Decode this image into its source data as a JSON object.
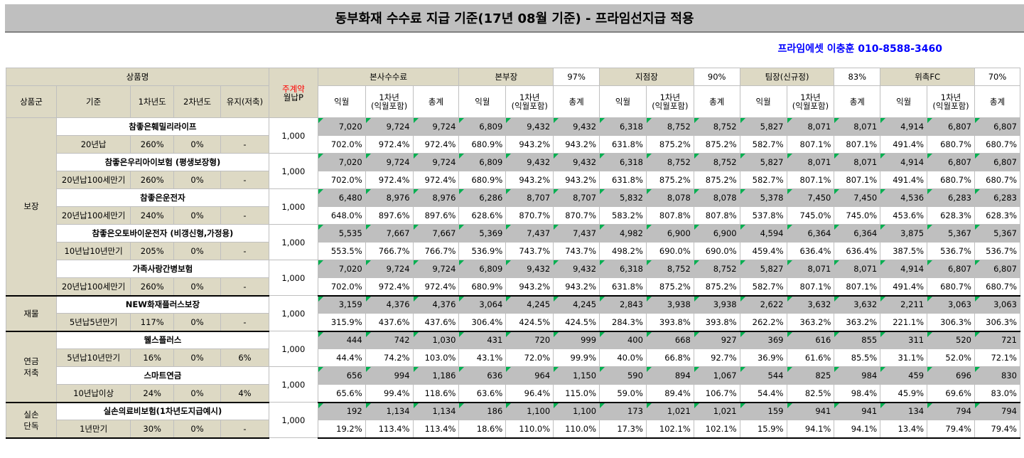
{
  "title": "동부화재 수수료 지급 기준(17년 08월 기준) - 프라임선지급 적용",
  "contact": "프라임에셋 이충훈 010-8588-3460",
  "header": {
    "product_name": "상품명",
    "main_contract_top": "주계약",
    "main_contract_bottom": "월납P",
    "hq_fee": "본사수수료",
    "hq_manager": "본부장",
    "hq_manager_rate": "97%",
    "branch_manager": "지점장",
    "branch_manager_rate": "90%",
    "team_leader": "팀장(신규정)",
    "team_leader_rate": "83%",
    "consignment": "위촉FC",
    "consignment_rate": "70%",
    "col_group": "상품군",
    "col_basis": "기준",
    "col_year1": "1차년도",
    "col_year2": "2차년도",
    "col_maintain": "유지(저축)",
    "col_next_month": "익월",
    "col_first_year_a": "1차년",
    "col_first_year_b": "(익월포함)",
    "col_total": "총계"
  },
  "groups": [
    {
      "label": "보장",
      "products": [
        {
          "name": "참좋은훼밀리라이프",
          "basis": "20년납",
          "y1": "260%",
          "y2": "0%",
          "maint": "-",
          "premium": "1,000",
          "amounts": [
            "7,020",
            "9,724",
            "9,724",
            "6,809",
            "9,432",
            "9,432",
            "6,318",
            "8,752",
            "8,752",
            "5,827",
            "8,071",
            "8,071",
            "4,914",
            "6,807",
            "6,807"
          ],
          "rates": [
            "702.0%",
            "972.4%",
            "972.4%",
            "680.9%",
            "943.2%",
            "943.2%",
            "631.8%",
            "875.2%",
            "875.2%",
            "582.7%",
            "807.1%",
            "807.1%",
            "491.4%",
            "680.7%",
            "680.7%"
          ]
        },
        {
          "name": "참좋은우리아이보험 (평생보장형)",
          "basis": "20년납100세만기",
          "y1": "260%",
          "y2": "0%",
          "maint": "-",
          "premium": "1,000",
          "amounts": [
            "7,020",
            "9,724",
            "9,724",
            "6,809",
            "9,432",
            "9,432",
            "6,318",
            "8,752",
            "8,752",
            "5,827",
            "8,071",
            "8,071",
            "4,914",
            "6,807",
            "6,807"
          ],
          "rates": [
            "702.0%",
            "972.4%",
            "972.4%",
            "680.9%",
            "943.2%",
            "943.2%",
            "631.8%",
            "875.2%",
            "875.2%",
            "582.7%",
            "807.1%",
            "807.1%",
            "491.4%",
            "680.7%",
            "680.7%"
          ]
        },
        {
          "name": "참좋은운전자",
          "basis": "20년납100세만기",
          "y1": "240%",
          "y2": "0%",
          "maint": "-",
          "premium": "1,000",
          "amounts": [
            "6,480",
            "8,976",
            "8,976",
            "6,286",
            "8,707",
            "8,707",
            "5,832",
            "8,078",
            "8,078",
            "5,378",
            "7,450",
            "7,450",
            "4,536",
            "6,283",
            "6,283"
          ],
          "rates": [
            "648.0%",
            "897.6%",
            "897.6%",
            "628.6%",
            "870.7%",
            "870.7%",
            "583.2%",
            "807.8%",
            "807.8%",
            "537.8%",
            "745.0%",
            "745.0%",
            "453.6%",
            "628.3%",
            "628.3%"
          ]
        },
        {
          "name": "참좋은오토바이운전자 (비갱신형,가정용)",
          "basis": "10년납10년만기",
          "y1": "205%",
          "y2": "0%",
          "maint": "-",
          "premium": "1,000",
          "amounts": [
            "5,535",
            "7,667",
            "7,667",
            "5,369",
            "7,437",
            "7,437",
            "4,982",
            "6,900",
            "6,900",
            "4,594",
            "6,364",
            "6,364",
            "3,875",
            "5,367",
            "5,367"
          ],
          "rates": [
            "553.5%",
            "766.7%",
            "766.7%",
            "536.9%",
            "743.7%",
            "743.7%",
            "498.2%",
            "690.0%",
            "690.0%",
            "459.4%",
            "636.4%",
            "636.4%",
            "387.5%",
            "536.7%",
            "536.7%"
          ]
        },
        {
          "name": "가족사랑간병보험",
          "basis": "20년납100세만기",
          "y1": "260%",
          "y2": "0%",
          "maint": "-",
          "premium": "1,000",
          "amounts": [
            "7,020",
            "9,724",
            "9,724",
            "6,809",
            "9,432",
            "9,432",
            "6,318",
            "8,752",
            "8,752",
            "5,827",
            "8,071",
            "8,071",
            "4,914",
            "6,807",
            "6,807"
          ],
          "rates": [
            "702.0%",
            "972.4%",
            "972.4%",
            "680.9%",
            "943.2%",
            "943.2%",
            "631.8%",
            "875.2%",
            "875.2%",
            "582.7%",
            "807.1%",
            "807.1%",
            "491.4%",
            "680.7%",
            "680.7%"
          ]
        }
      ]
    },
    {
      "label": "재물",
      "products": [
        {
          "name": "NEW화재플러스보장",
          "basis": "5년납5년만기",
          "y1": "117%",
          "y2": "0%",
          "maint": "-",
          "premium": "1,000",
          "amounts": [
            "3,159",
            "4,376",
            "4,376",
            "3,064",
            "4,245",
            "4,245",
            "2,843",
            "3,938",
            "3,938",
            "2,622",
            "3,632",
            "3,632",
            "2,211",
            "3,063",
            "3,063"
          ],
          "rates": [
            "315.9%",
            "437.6%",
            "437.6%",
            "306.4%",
            "424.5%",
            "424.5%",
            "284.3%",
            "393.8%",
            "393.8%",
            "262.2%",
            "363.2%",
            "363.2%",
            "221.1%",
            "306.3%",
            "306.3%"
          ]
        }
      ]
    },
    {
      "label": "연금\n저축",
      "products": [
        {
          "name": "웰스플러스",
          "basis": "5년납10년만기",
          "y1": "16%",
          "y2": "0%",
          "maint": "6%",
          "premium": "1,000",
          "amounts": [
            "444",
            "742",
            "1,030",
            "431",
            "720",
            "999",
            "400",
            "668",
            "927",
            "369",
            "616",
            "855",
            "311",
            "520",
            "721"
          ],
          "rates": [
            "44.4%",
            "74.2%",
            "103.0%",
            "43.1%",
            "72.0%",
            "99.9%",
            "40.0%",
            "66.8%",
            "92.7%",
            "36.9%",
            "61.6%",
            "85.5%",
            "31.1%",
            "52.0%",
            "72.1%"
          ]
        },
        {
          "name": "스마트연금",
          "basis": "10년납이상",
          "y1": "24%",
          "y2": "0%",
          "maint": "4%",
          "premium": "1,000",
          "amounts": [
            "656",
            "994",
            "1,186",
            "636",
            "964",
            "1,150",
            "590",
            "894",
            "1,067",
            "544",
            "825",
            "984",
            "459",
            "696",
            "830"
          ],
          "rates": [
            "65.6%",
            "99.4%",
            "118.6%",
            "63.6%",
            "96.4%",
            "115.0%",
            "59.0%",
            "89.4%",
            "106.7%",
            "54.4%",
            "82.5%",
            "98.4%",
            "45.9%",
            "69.6%",
            "83.0%"
          ]
        }
      ]
    },
    {
      "label": "실손\n단독",
      "products": [
        {
          "name": "실손의료비보험(1차년도지급예시)",
          "basis": "1년만기",
          "y1": "30%",
          "y2": "0%",
          "maint": "-",
          "premium": "1,000",
          "amounts": [
            "192",
            "1,134",
            "1,134",
            "186",
            "1,100",
            "1,100",
            "173",
            "1,021",
            "1,021",
            "159",
            "941",
            "941",
            "134",
            "794",
            "794"
          ],
          "rates": [
            "19.2%",
            "113.4%",
            "113.4%",
            "18.6%",
            "110.0%",
            "110.0%",
            "17.3%",
            "102.1%",
            "102.1%",
            "15.9%",
            "94.1%",
            "94.1%",
            "13.4%",
            "79.4%",
            "79.4%"
          ]
        }
      ]
    }
  ]
}
